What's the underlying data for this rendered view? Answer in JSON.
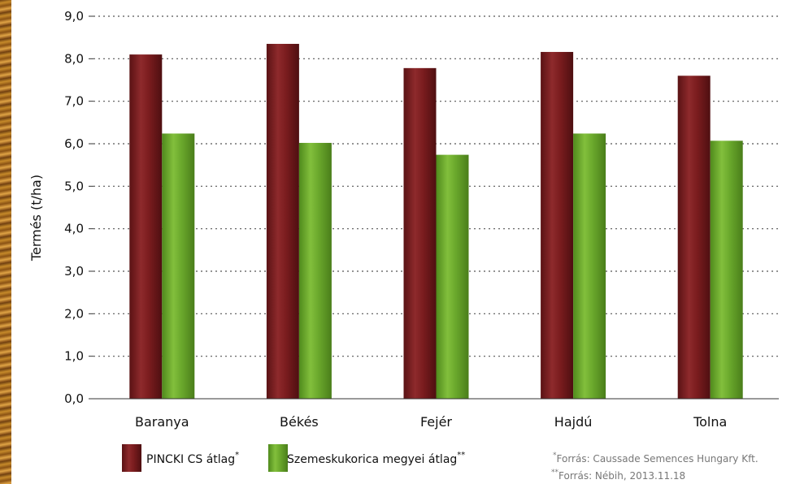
{
  "colors": {
    "series1": "#7a1c1e",
    "series2": "#6aa82c",
    "grid": "#555555"
  },
  "chart_data": {
    "type": "bar",
    "categories": [
      "Baranya",
      "Békés",
      "Fejér",
      "Hajdú",
      "Tolna"
    ],
    "series": [
      {
        "name": "PINCKI CS átlag",
        "values": [
          8.1,
          8.35,
          7.78,
          8.16,
          7.6
        ],
        "color": "#7a1c1e"
      },
      {
        "name": "Szemeskukorica megyei átlag",
        "values": [
          6.24,
          6.02,
          5.74,
          6.24,
          6.07
        ],
        "color": "#6aa82c"
      }
    ],
    "ylabel": "Termés (t/ha)",
    "ylim": [
      0,
      9
    ],
    "ytick_labels": [
      "0,0",
      "1,0",
      "2,0",
      "3,0",
      "4,0",
      "5,0",
      "6,0",
      "7,0",
      "8,0",
      "9,0"
    ],
    "grid": true,
    "legend_position": "bottom-left"
  },
  "legend": {
    "series1_label": "PINCKI CS átlag",
    "series1_mark": "*",
    "series2_label": "Szemeskukorica megyei átlag",
    "series2_mark": "**"
  },
  "sources": {
    "line1_mark": "*",
    "line1_text": "Forrás:  Caussade Semences Hungary Kft.",
    "line2_mark": "**",
    "line2_text": "Forrás:  Nébih, 2013.11.18"
  }
}
